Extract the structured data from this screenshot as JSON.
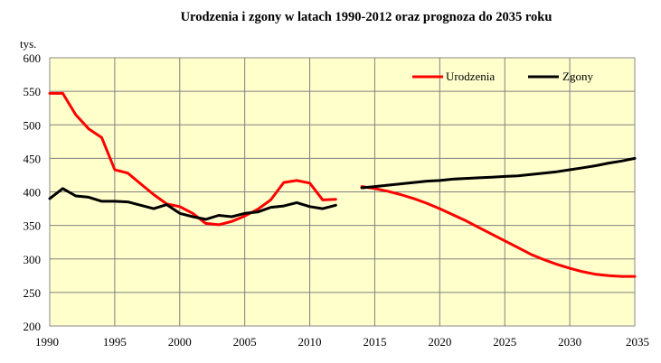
{
  "chart_data": {
    "type": "line",
    "title": "Urodzenia i zgony w latach 1990-2012 oraz prognoza do 2035 roku",
    "ylabel": "tys.",
    "xlabel": "",
    "xlim": [
      1990,
      2035
    ],
    "ylim": [
      200,
      600
    ],
    "x_ticks": [
      1990,
      1995,
      2000,
      2005,
      2010,
      2015,
      2020,
      2025,
      2030,
      2035
    ],
    "y_ticks": [
      200,
      250,
      300,
      350,
      400,
      450,
      500,
      550,
      600
    ],
    "grid": true,
    "legend_position": "top-right",
    "series": [
      {
        "name": "Urodzenia",
        "color": "#ff0000",
        "segments": [
          {
            "x": [
              1990,
              1991,
              1992,
              1993,
              1994,
              1995,
              1996,
              1997,
              1998,
              1999,
              2000,
              2001,
              2002,
              2003,
              2004,
              2005,
              2006,
              2007,
              2008,
              2009,
              2010,
              2011,
              2012
            ],
            "y": [
              547,
              547,
              515,
              494,
              481,
              433,
              428,
              412,
              396,
              382,
              378,
              368,
              353,
              351,
              356,
              364,
              374,
              388,
              414,
              417,
              413,
              388,
              389
            ]
          },
          {
            "x": [
              2014,
              2015,
              2016,
              2017,
              2018,
              2019,
              2020,
              2021,
              2022,
              2023,
              2024,
              2025,
              2026,
              2027,
              2028,
              2029,
              2030,
              2031,
              2032,
              2033,
              2034,
              2035
            ],
            "y": [
              408,
              405,
              401,
              396,
              390,
              383,
              375,
              366,
              357,
              347,
              337,
              327,
              317,
              307,
              299,
              292,
              286,
              281,
              277,
              275,
              274,
              274
            ]
          }
        ]
      },
      {
        "name": "Zgony",
        "color": "#000000",
        "segments": [
          {
            "x": [
              1990,
              1991,
              1992,
              1993,
              1994,
              1995,
              1996,
              1997,
              1998,
              1999,
              2000,
              2001,
              2002,
              2003,
              2004,
              2005,
              2006,
              2007,
              2008,
              2009,
              2010,
              2011,
              2012
            ],
            "y": [
              390,
              405,
              394,
              392,
              386,
              386,
              385,
              380,
              375,
              381,
              368,
              363,
              359,
              365,
              363,
              368,
              370,
              377,
              379,
              384,
              378,
              375,
              380
            ]
          },
          {
            "x": [
              2014,
              2015,
              2016,
              2017,
              2018,
              2019,
              2020,
              2021,
              2022,
              2023,
              2024,
              2025,
              2026,
              2027,
              2028,
              2029,
              2030,
              2031,
              2032,
              2033,
              2034,
              2035
            ],
            "y": [
              406,
              408,
              410,
              412,
              414,
              416,
              417,
              419,
              420,
              421,
              422,
              423,
              424,
              426,
              428,
              430,
              433,
              436,
              439,
              443,
              446,
              450
            ]
          }
        ]
      }
    ]
  }
}
